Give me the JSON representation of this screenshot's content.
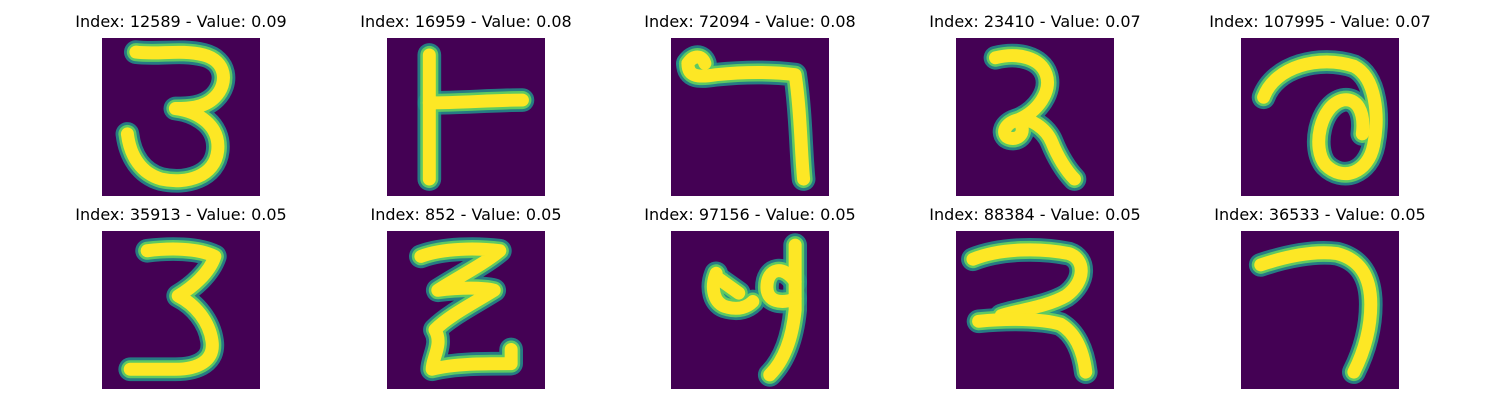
{
  "colors": {
    "background": "#440154",
    "stroke_core": "#fde725",
    "stroke_edge": "#21918c",
    "stroke_mid": "#5ec962"
  },
  "panels": [
    {
      "title": "Index: 12589 - Value: 0.09",
      "glyph": "devanagari-3"
    },
    {
      "title": "Index: 16959 - Value: 0.08",
      "glyph": "t-shape"
    },
    {
      "title": "Index: 72094 - Value: 0.08",
      "glyph": "devanagari-7"
    },
    {
      "title": "Index: 23410 - Value: 0.07",
      "glyph": "devanagari-2"
    },
    {
      "title": "Index: 107995 - Value: 0.07",
      "glyph": "devanagari-6"
    },
    {
      "title": "Index: 35913 - Value: 0.05",
      "glyph": "devanagari-3"
    },
    {
      "title": "Index: 852 - Value: 0.05",
      "glyph": "jha-like"
    },
    {
      "title": "Index: 97156 - Value: 0.05",
      "glyph": "devanagari-5"
    },
    {
      "title": "Index: 88384 - Value: 0.05",
      "glyph": "devanagari-2"
    },
    {
      "title": "Index: 36533 - Value: 0.05",
      "glyph": "hook"
    }
  ]
}
